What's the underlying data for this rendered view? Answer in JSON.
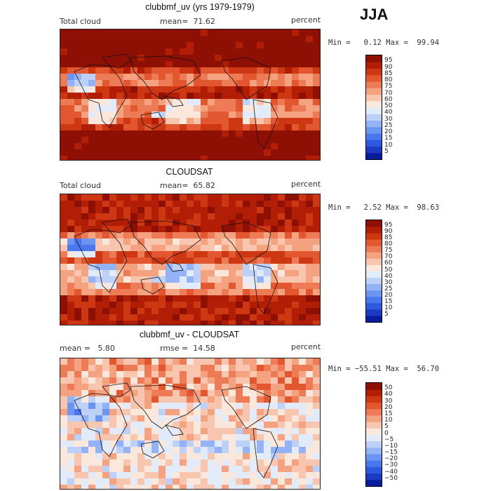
{
  "season": "JJA",
  "colors": {
    "abs": [
      "#081d9c",
      "#1d3bc2",
      "#2e58df",
      "#4a78ec",
      "#6c95f2",
      "#93b3f6",
      "#bdd0f8",
      "#e2ebfa",
      "#fbe8dd",
      "#f8c6ae",
      "#f4a27f",
      "#ed7c56",
      "#e2572f",
      "#cd3813",
      "#b21e05",
      "#8e0f04"
    ],
    "diff": [
      "#081d9c",
      "#1d3bc2",
      "#2e58df",
      "#4a78ec",
      "#6c95f2",
      "#93b3f6",
      "#bdd0f8",
      "#e2ebfa",
      "#fbe8dd",
      "#f8c6ae",
      "#f4a27f",
      "#ed7c56",
      "#e2572f",
      "#cd3813",
      "#b21e05",
      "#8e0f04"
    ]
  },
  "panels": [
    {
      "title": "clubbmf_uv (yrs 1979-1979)",
      "left_label": "Total cloud",
      "center_label": "mean=  71.62",
      "right_label": "percent",
      "minmax": "Min =   0.12 Max =  99.94",
      "colorbar_key": "abs",
      "bias": 10,
      "ticks": [
        "95",
        "90",
        "85",
        "80",
        "75",
        "70",
        "60",
        "50",
        "40",
        "30",
        "25",
        "20",
        "15",
        "10",
        "5"
      ]
    },
    {
      "title": "CLOUDSAT",
      "left_label": "Total cloud",
      "center_label": "mean=  65.82",
      "right_label": "percent",
      "minmax": "Min =   2.52 Max =  98.63",
      "colorbar_key": "abs",
      "bias": 0,
      "ticks": [
        "95",
        "90",
        "85",
        "80",
        "75",
        "70",
        "60",
        "50",
        "40",
        "30",
        "25",
        "20",
        "15",
        "10",
        "5"
      ]
    },
    {
      "title": "clubbmf_uv - CLOUDSAT",
      "left_label": "mean =   5.80",
      "center_label": "rmse =  14.58",
      "right_label": "percent",
      "minmax": "Min = −55.51 Max =  56.70",
      "colorbar_key": "diff",
      "bias": 0,
      "ticks": [
        "50",
        "40",
        "30",
        "20",
        "15",
        "10",
        "5",
        "0",
        "−5",
        "−10",
        "−15",
        "−20",
        "−30",
        "−40",
        "−50"
      ]
    }
  ]
}
